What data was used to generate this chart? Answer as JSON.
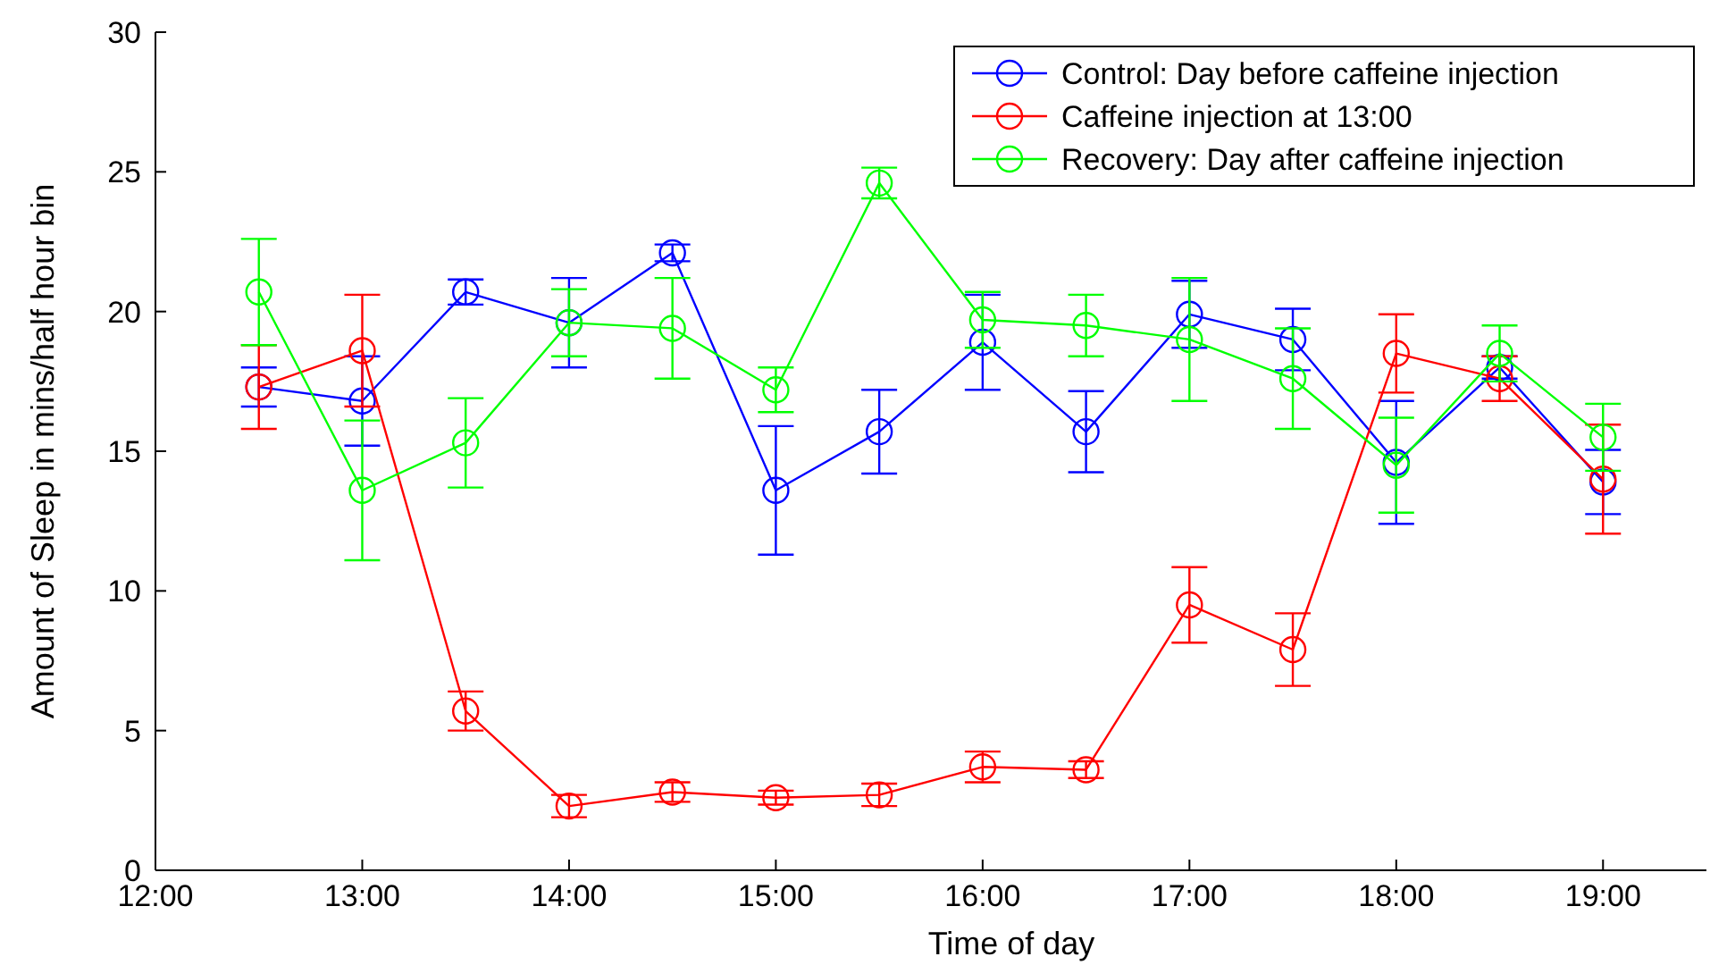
{
  "chart_data": {
    "type": "line",
    "xlabel": "Time of day",
    "ylabel": "Amount of Sleep in mins/half hour bin",
    "x": [
      12.5,
      13,
      13.5,
      14,
      14.5,
      15,
      15.5,
      16,
      16.5,
      17,
      17.5,
      18,
      18.5,
      19
    ],
    "xlim": [
      12,
      19.5
    ],
    "xticks": [
      {
        "value": 12,
        "label": "12:00"
      },
      {
        "value": 13,
        "label": "13:00"
      },
      {
        "value": 14,
        "label": "14:00"
      },
      {
        "value": 15,
        "label": "15:00"
      },
      {
        "value": 16,
        "label": "16:00"
      },
      {
        "value": 17,
        "label": "17:00"
      },
      {
        "value": 18,
        "label": "18:00"
      },
      {
        "value": 19,
        "label": "19:00"
      }
    ],
    "ylim": [
      0,
      30
    ],
    "yticks": [
      0,
      5,
      10,
      15,
      20,
      25,
      30
    ],
    "grid": false,
    "legend": "top right",
    "marker": "circle",
    "line_style": "solid",
    "series": [
      {
        "name": "Control: Day before caffeine injection",
        "color": "#0000ff",
        "values": [
          17.3,
          16.8,
          20.7,
          19.6,
          22.1,
          13.6,
          15.7,
          18.9,
          15.7,
          19.9,
          19.0,
          14.6,
          18.0,
          13.9
        ],
        "errors": [
          0.7,
          1.6,
          0.45,
          1.6,
          0.3,
          2.3,
          1.5,
          1.7,
          1.45,
          1.2,
          1.1,
          2.2,
          0.4,
          1.15
        ]
      },
      {
        "name": "Caffeine injection at 13:00",
        "color": "#ff0000",
        "values": [
          17.3,
          18.6,
          5.7,
          2.3,
          2.8,
          2.6,
          2.7,
          3.7,
          3.6,
          9.5,
          7.9,
          18.5,
          17.6,
          14.0
        ],
        "errors": [
          1.5,
          2.0,
          0.7,
          0.4,
          0.35,
          0.25,
          0.4,
          0.55,
          0.3,
          1.35,
          1.3,
          1.4,
          0.8,
          1.95
        ]
      },
      {
        "name": "Recovery: Day after caffeine injection",
        "color": "#00ff00",
        "values": [
          20.7,
          13.6,
          15.3,
          19.6,
          19.4,
          17.2,
          24.6,
          19.7,
          19.5,
          19.0,
          17.6,
          14.5,
          18.5,
          15.5
        ],
        "errors": [
          1.9,
          2.5,
          1.6,
          1.2,
          1.8,
          0.8,
          0.55,
          1.0,
          1.1,
          2.2,
          1.8,
          1.7,
          1.0,
          1.2
        ]
      }
    ]
  }
}
